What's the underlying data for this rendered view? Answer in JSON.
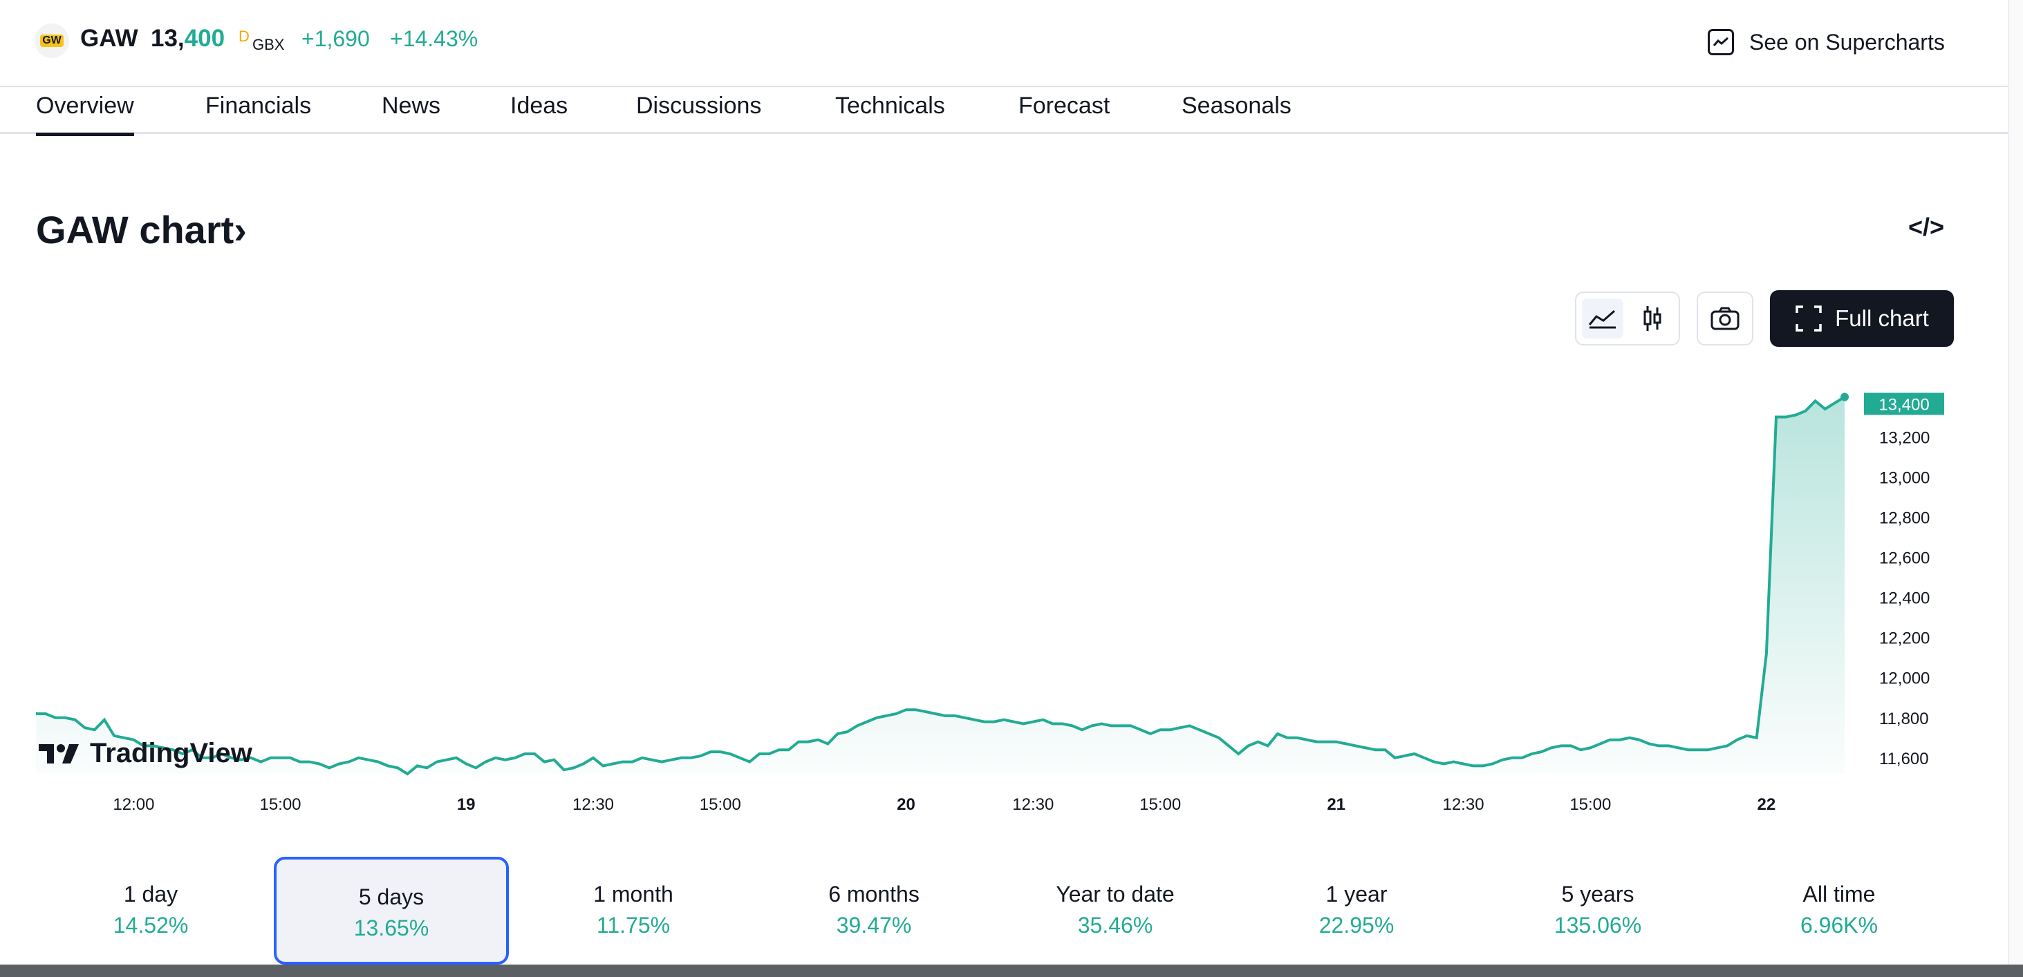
{
  "header": {
    "logo_text": "GW",
    "ticker": "GAW",
    "price_int": "13,",
    "price_dec": "400",
    "price_suffix": "D",
    "currency": "GBX",
    "change": "+1,690",
    "change_pct": "+14.43%",
    "supercharts_label": "See on Supercharts"
  },
  "tabs": [
    "Overview",
    "Financials",
    "News",
    "Ideas",
    "Discussions",
    "Technicals",
    "Forecast",
    "Seasonals"
  ],
  "active_tab": "Overview",
  "chart_section": {
    "title": "GAW chart",
    "title_chevron": "›",
    "embed_icon_text": "</>",
    "full_chart_label": "Full chart",
    "brand": "TradingView",
    "accent_color": "#22ab94",
    "current_price_label": "13,400"
  },
  "chart_data": {
    "type": "area",
    "y_ticks": [
      "13,200",
      "13,000",
      "12,800",
      "12,600",
      "12,400",
      "12,200",
      "12,000",
      "11,800",
      "11,600"
    ],
    "ylim": [
      11520,
      13450
    ],
    "x_ticks": [
      {
        "label": "12:00",
        "i": 10,
        "bold": false
      },
      {
        "label": "15:00",
        "i": 25,
        "bold": false
      },
      {
        "label": "19",
        "i": 44,
        "bold": true
      },
      {
        "label": "12:30",
        "i": 57,
        "bold": false
      },
      {
        "label": "15:00",
        "i": 70,
        "bold": false
      },
      {
        "label": "20",
        "i": 89,
        "bold": true
      },
      {
        "label": "12:30",
        "i": 102,
        "bold": false
      },
      {
        "label": "15:00",
        "i": 115,
        "bold": false
      },
      {
        "label": "21",
        "i": 133,
        "bold": true
      },
      {
        "label": "12:30",
        "i": 146,
        "bold": false
      },
      {
        "label": "15:00",
        "i": 159,
        "bold": false
      },
      {
        "label": "22",
        "i": 177,
        "bold": true
      }
    ],
    "series": [
      {
        "values": [
          11820,
          11820,
          11800,
          11800,
          11790,
          11750,
          11740,
          11790,
          11710,
          11700,
          11690,
          11660,
          11660,
          11650,
          11640,
          11620,
          11640,
          11600,
          11600,
          11620,
          11600,
          11590,
          11600,
          11580,
          11600,
          11600,
          11600,
          11580,
          11580,
          11570,
          11550,
          11570,
          11580,
          11600,
          11590,
          11580,
          11560,
          11550,
          11520,
          11560,
          11550,
          11580,
          11590,
          11600,
          11570,
          11550,
          11580,
          11600,
          11590,
          11600,
          11620,
          11620,
          11580,
          11590,
          11540,
          11550,
          11570,
          11600,
          11560,
          11570,
          11580,
          11580,
          11600,
          11590,
          11580,
          11590,
          11600,
          11600,
          11610,
          11630,
          11630,
          11620,
          11600,
          11580,
          11620,
          11620,
          11640,
          11640,
          11680,
          11680,
          11690,
          11670,
          11720,
          11730,
          11760,
          11780,
          11800,
          11810,
          11820,
          11840,
          11840,
          11830,
          11820,
          11810,
          11810,
          11800,
          11790,
          11780,
          11780,
          11790,
          11780,
          11770,
          11780,
          11790,
          11770,
          11770,
          11760,
          11740,
          11760,
          11770,
          11760,
          11760,
          11760,
          11740,
          11720,
          11740,
          11740,
          11750,
          11760,
          11740,
          11720,
          11700,
          11660,
          11620,
          11660,
          11680,
          11660,
          11720,
          11700,
          11700,
          11690,
          11680,
          11680,
          11680,
          11670,
          11660,
          11650,
          11640,
          11640,
          11600,
          11610,
          11620,
          11600,
          11580,
          11570,
          11580,
          11570,
          11560,
          11560,
          11570,
          11590,
          11600,
          11600,
          11620,
          11630,
          11650,
          11660,
          11660,
          11640,
          11650,
          11670,
          11690,
          11690,
          11700,
          11690,
          11670,
          11660,
          11660,
          11650,
          11640,
          11640,
          11640,
          11650,
          11660,
          11690,
          11710,
          11700,
          12120,
          13300,
          13300,
          13310,
          13330,
          13380,
          13340,
          13370,
          13400
        ]
      }
    ]
  },
  "periods": [
    {
      "label": "1 day",
      "value": "14.52%"
    },
    {
      "label": "5 days",
      "value": "13.65%"
    },
    {
      "label": "1 month",
      "value": "11.75%"
    },
    {
      "label": "6 months",
      "value": "39.47%"
    },
    {
      "label": "Year to date",
      "value": "35.46%"
    },
    {
      "label": "1 year",
      "value": "22.95%"
    },
    {
      "label": "5 years",
      "value": "135.06%"
    },
    {
      "label": "All time",
      "value": "6.96K%"
    }
  ],
  "selected_period": "5 days"
}
